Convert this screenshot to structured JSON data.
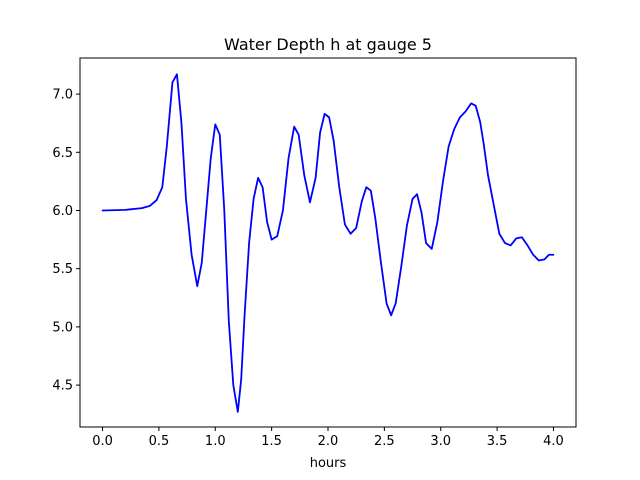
{
  "chart_data": {
    "type": "line",
    "title": "Water Depth h at gauge 5",
    "xlabel": "hours",
    "ylabel": "",
    "xlim": [
      -0.2,
      4.2
    ],
    "ylim": [
      4.14,
      7.31
    ],
    "x_ticks": [
      0.0,
      0.5,
      1.0,
      1.5,
      2.0,
      2.5,
      3.0,
      3.5,
      4.0
    ],
    "x_tick_labels": [
      "0.0",
      "0.5",
      "1.0",
      "1.5",
      "2.0",
      "2.5",
      "3.0",
      "3.5",
      "4.0"
    ],
    "y_ticks": [
      4.5,
      5.0,
      5.5,
      6.0,
      6.5,
      7.0
    ],
    "y_tick_labels": [
      "4.5",
      "5.0",
      "5.5",
      "6.0",
      "6.5",
      "7.0"
    ],
    "grid": false,
    "series": [
      {
        "color": "#0000ff",
        "x": [
          0.0,
          0.2,
          0.35,
          0.42,
          0.48,
          0.53,
          0.57,
          0.62,
          0.66,
          0.7,
          0.74,
          0.79,
          0.84,
          0.88,
          0.92,
          0.96,
          1.0,
          1.04,
          1.08,
          1.12,
          1.16,
          1.2,
          1.23,
          1.26,
          1.3,
          1.34,
          1.38,
          1.42,
          1.46,
          1.5,
          1.55,
          1.6,
          1.65,
          1.7,
          1.74,
          1.79,
          1.84,
          1.89,
          1.93,
          1.97,
          2.01,
          2.05,
          2.1,
          2.15,
          2.2,
          2.25,
          2.3,
          2.34,
          2.38,
          2.42,
          2.47,
          2.52,
          2.56,
          2.6,
          2.65,
          2.7,
          2.75,
          2.79,
          2.83,
          2.87,
          2.92,
          2.97,
          3.02,
          3.07,
          3.12,
          3.17,
          3.22,
          3.27,
          3.31,
          3.35,
          3.38,
          3.42,
          3.47,
          3.52,
          3.57,
          3.62,
          3.67,
          3.72,
          3.77,
          3.82,
          3.87,
          3.92,
          3.96,
          4.0
        ],
        "y": [
          6.0,
          6.005,
          6.02,
          6.04,
          6.09,
          6.2,
          6.55,
          7.1,
          7.17,
          6.75,
          6.1,
          5.62,
          5.35,
          5.55,
          6.0,
          6.45,
          6.74,
          6.65,
          6.0,
          5.05,
          4.5,
          4.27,
          4.55,
          5.1,
          5.72,
          6.1,
          6.28,
          6.2,
          5.9,
          5.75,
          5.78,
          6.0,
          6.45,
          6.72,
          6.65,
          6.3,
          6.07,
          6.28,
          6.67,
          6.83,
          6.8,
          6.6,
          6.2,
          5.88,
          5.8,
          5.85,
          6.08,
          6.2,
          6.17,
          5.93,
          5.55,
          5.2,
          5.1,
          5.2,
          5.52,
          5.87,
          6.1,
          6.14,
          5.98,
          5.72,
          5.67,
          5.9,
          6.25,
          6.55,
          6.7,
          6.8,
          6.85,
          6.92,
          6.9,
          6.76,
          6.58,
          6.3,
          6.05,
          5.8,
          5.72,
          5.7,
          5.76,
          5.77,
          5.7,
          5.62,
          5.57,
          5.58,
          5.62,
          5.62
        ]
      }
    ]
  }
}
